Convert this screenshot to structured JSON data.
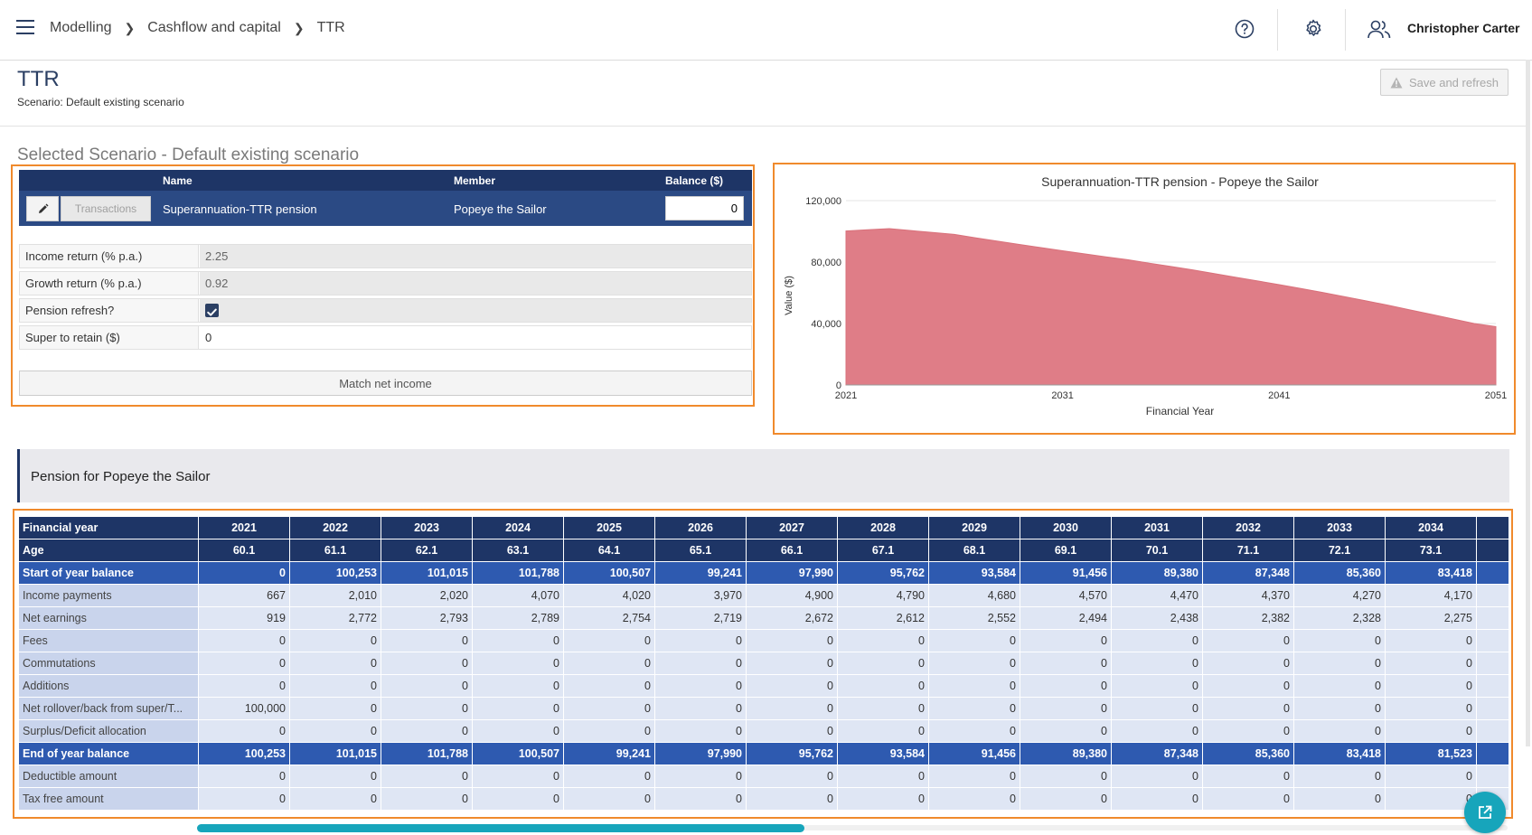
{
  "breadcrumb": [
    "Modelling",
    "Cashflow and capital",
    "TTR"
  ],
  "user": {
    "name": "Christopher Carter"
  },
  "page": {
    "title": "TTR",
    "scenario_line": "Scenario: Default existing scenario",
    "save_label": "Save and refresh",
    "section_title": "Selected Scenario - Default existing scenario"
  },
  "account": {
    "headers": {
      "name": "Name",
      "member": "Member",
      "balance": "Balance ($)"
    },
    "transactions_label": "Transactions",
    "name": "Superannuation-TTR pension",
    "member": "Popeye the Sailor",
    "balance": "0"
  },
  "fields": {
    "income_return": {
      "label": "Income return (% p.a.)",
      "value": "2.25"
    },
    "growth_return": {
      "label": "Growth return (% p.a.)",
      "value": "0.92"
    },
    "pension_refresh": {
      "label": "Pension refresh?",
      "checked": true
    },
    "super_retain": {
      "label": "Super to retain ($)",
      "value": "0"
    }
  },
  "match_label": "Match net income",
  "chart_data": {
    "type": "area",
    "title": "Superannuation-TTR pension - Popeye the Sailor",
    "xlabel": "Financial Year",
    "ylabel": "Value ($)",
    "xlim": [
      2021,
      2051
    ],
    "ylim": [
      0,
      120000
    ],
    "xticks": [
      2021,
      2031,
      2041,
      2051
    ],
    "yticks": [
      0,
      40000,
      80000,
      120000
    ],
    "ytick_labels": [
      "0",
      "40,000",
      "80,000",
      "120,000"
    ],
    "color": "#df7d87",
    "x": [
      2021,
      2022,
      2023,
      2024,
      2025,
      2026,
      2027,
      2028,
      2029,
      2030,
      2031,
      2032,
      2033,
      2034,
      2035,
      2036,
      2037,
      2038,
      2039,
      2040,
      2041,
      2042,
      2043,
      2044,
      2045,
      2046,
      2047,
      2048,
      2049,
      2050,
      2051
    ],
    "values": [
      100253,
      101015,
      101788,
      100507,
      99241,
      97990,
      95762,
      93584,
      91456,
      89380,
      87348,
      85360,
      83418,
      81523,
      79300,
      77100,
      74900,
      72500,
      70100,
      67700,
      65300,
      62800,
      60200,
      57500,
      54800,
      52000,
      49000,
      46000,
      43000,
      40000,
      38000
    ]
  },
  "pension": {
    "header": "Pension for Popeye the Sailor",
    "rows": [
      {
        "label": "Financial year",
        "style": "hdr",
        "values": [
          "2021",
          "2022",
          "2023",
          "2024",
          "2025",
          "2026",
          "2027",
          "2028",
          "2029",
          "2030",
          "2031",
          "2032",
          "2033",
          "2034"
        ]
      },
      {
        "label": "Age",
        "style": "hdr",
        "values": [
          "60.1",
          "61.1",
          "62.1",
          "63.1",
          "64.1",
          "65.1",
          "66.1",
          "67.1",
          "68.1",
          "69.1",
          "70.1",
          "71.1",
          "72.1",
          "73.1"
        ]
      },
      {
        "label": "Start of year balance",
        "style": "hl",
        "values": [
          "0",
          "100,253",
          "101,015",
          "101,788",
          "100,507",
          "99,241",
          "97,990",
          "95,762",
          "93,584",
          "91,456",
          "89,380",
          "87,348",
          "85,360",
          "83,418"
        ]
      },
      {
        "label": "Income payments",
        "style": "norm",
        "values": [
          "667",
          "2,010",
          "2,020",
          "4,070",
          "4,020",
          "3,970",
          "4,900",
          "4,790",
          "4,680",
          "4,570",
          "4,470",
          "4,370",
          "4,270",
          "4,170"
        ]
      },
      {
        "label": "Net earnings",
        "style": "norm",
        "values": [
          "919",
          "2,772",
          "2,793",
          "2,789",
          "2,754",
          "2,719",
          "2,672",
          "2,612",
          "2,552",
          "2,494",
          "2,438",
          "2,382",
          "2,328",
          "2,275"
        ]
      },
      {
        "label": "Fees",
        "style": "norm",
        "values": [
          "0",
          "0",
          "0",
          "0",
          "0",
          "0",
          "0",
          "0",
          "0",
          "0",
          "0",
          "0",
          "0",
          "0"
        ]
      },
      {
        "label": "Commutations",
        "style": "norm",
        "values": [
          "0",
          "0",
          "0",
          "0",
          "0",
          "0",
          "0",
          "0",
          "0",
          "0",
          "0",
          "0",
          "0",
          "0"
        ]
      },
      {
        "label": "Additions",
        "style": "norm",
        "values": [
          "0",
          "0",
          "0",
          "0",
          "0",
          "0",
          "0",
          "0",
          "0",
          "0",
          "0",
          "0",
          "0",
          "0"
        ]
      },
      {
        "label": "Net rollover/back from super/T...",
        "style": "norm",
        "values": [
          "100,000",
          "0",
          "0",
          "0",
          "0",
          "0",
          "0",
          "0",
          "0",
          "0",
          "0",
          "0",
          "0",
          "0"
        ]
      },
      {
        "label": "Surplus/Deficit allocation",
        "style": "norm",
        "values": [
          "0",
          "0",
          "0",
          "0",
          "0",
          "0",
          "0",
          "0",
          "0",
          "0",
          "0",
          "0",
          "0",
          "0"
        ]
      },
      {
        "label": "End of year balance",
        "style": "hl",
        "values": [
          "100,253",
          "101,015",
          "101,788",
          "100,507",
          "99,241",
          "97,990",
          "95,762",
          "93,584",
          "91,456",
          "89,380",
          "87,348",
          "85,360",
          "83,418",
          "81,523"
        ]
      },
      {
        "label": "Deductible amount",
        "style": "norm",
        "values": [
          "0",
          "0",
          "0",
          "0",
          "0",
          "0",
          "0",
          "0",
          "0",
          "0",
          "0",
          "0",
          "0",
          "0"
        ]
      },
      {
        "label": "Tax free amount",
        "style": "norm",
        "values": [
          "0",
          "0",
          "0",
          "0",
          "0",
          "0",
          "0",
          "0",
          "0",
          "0",
          "0",
          "0",
          "0",
          "0"
        ]
      }
    ]
  }
}
